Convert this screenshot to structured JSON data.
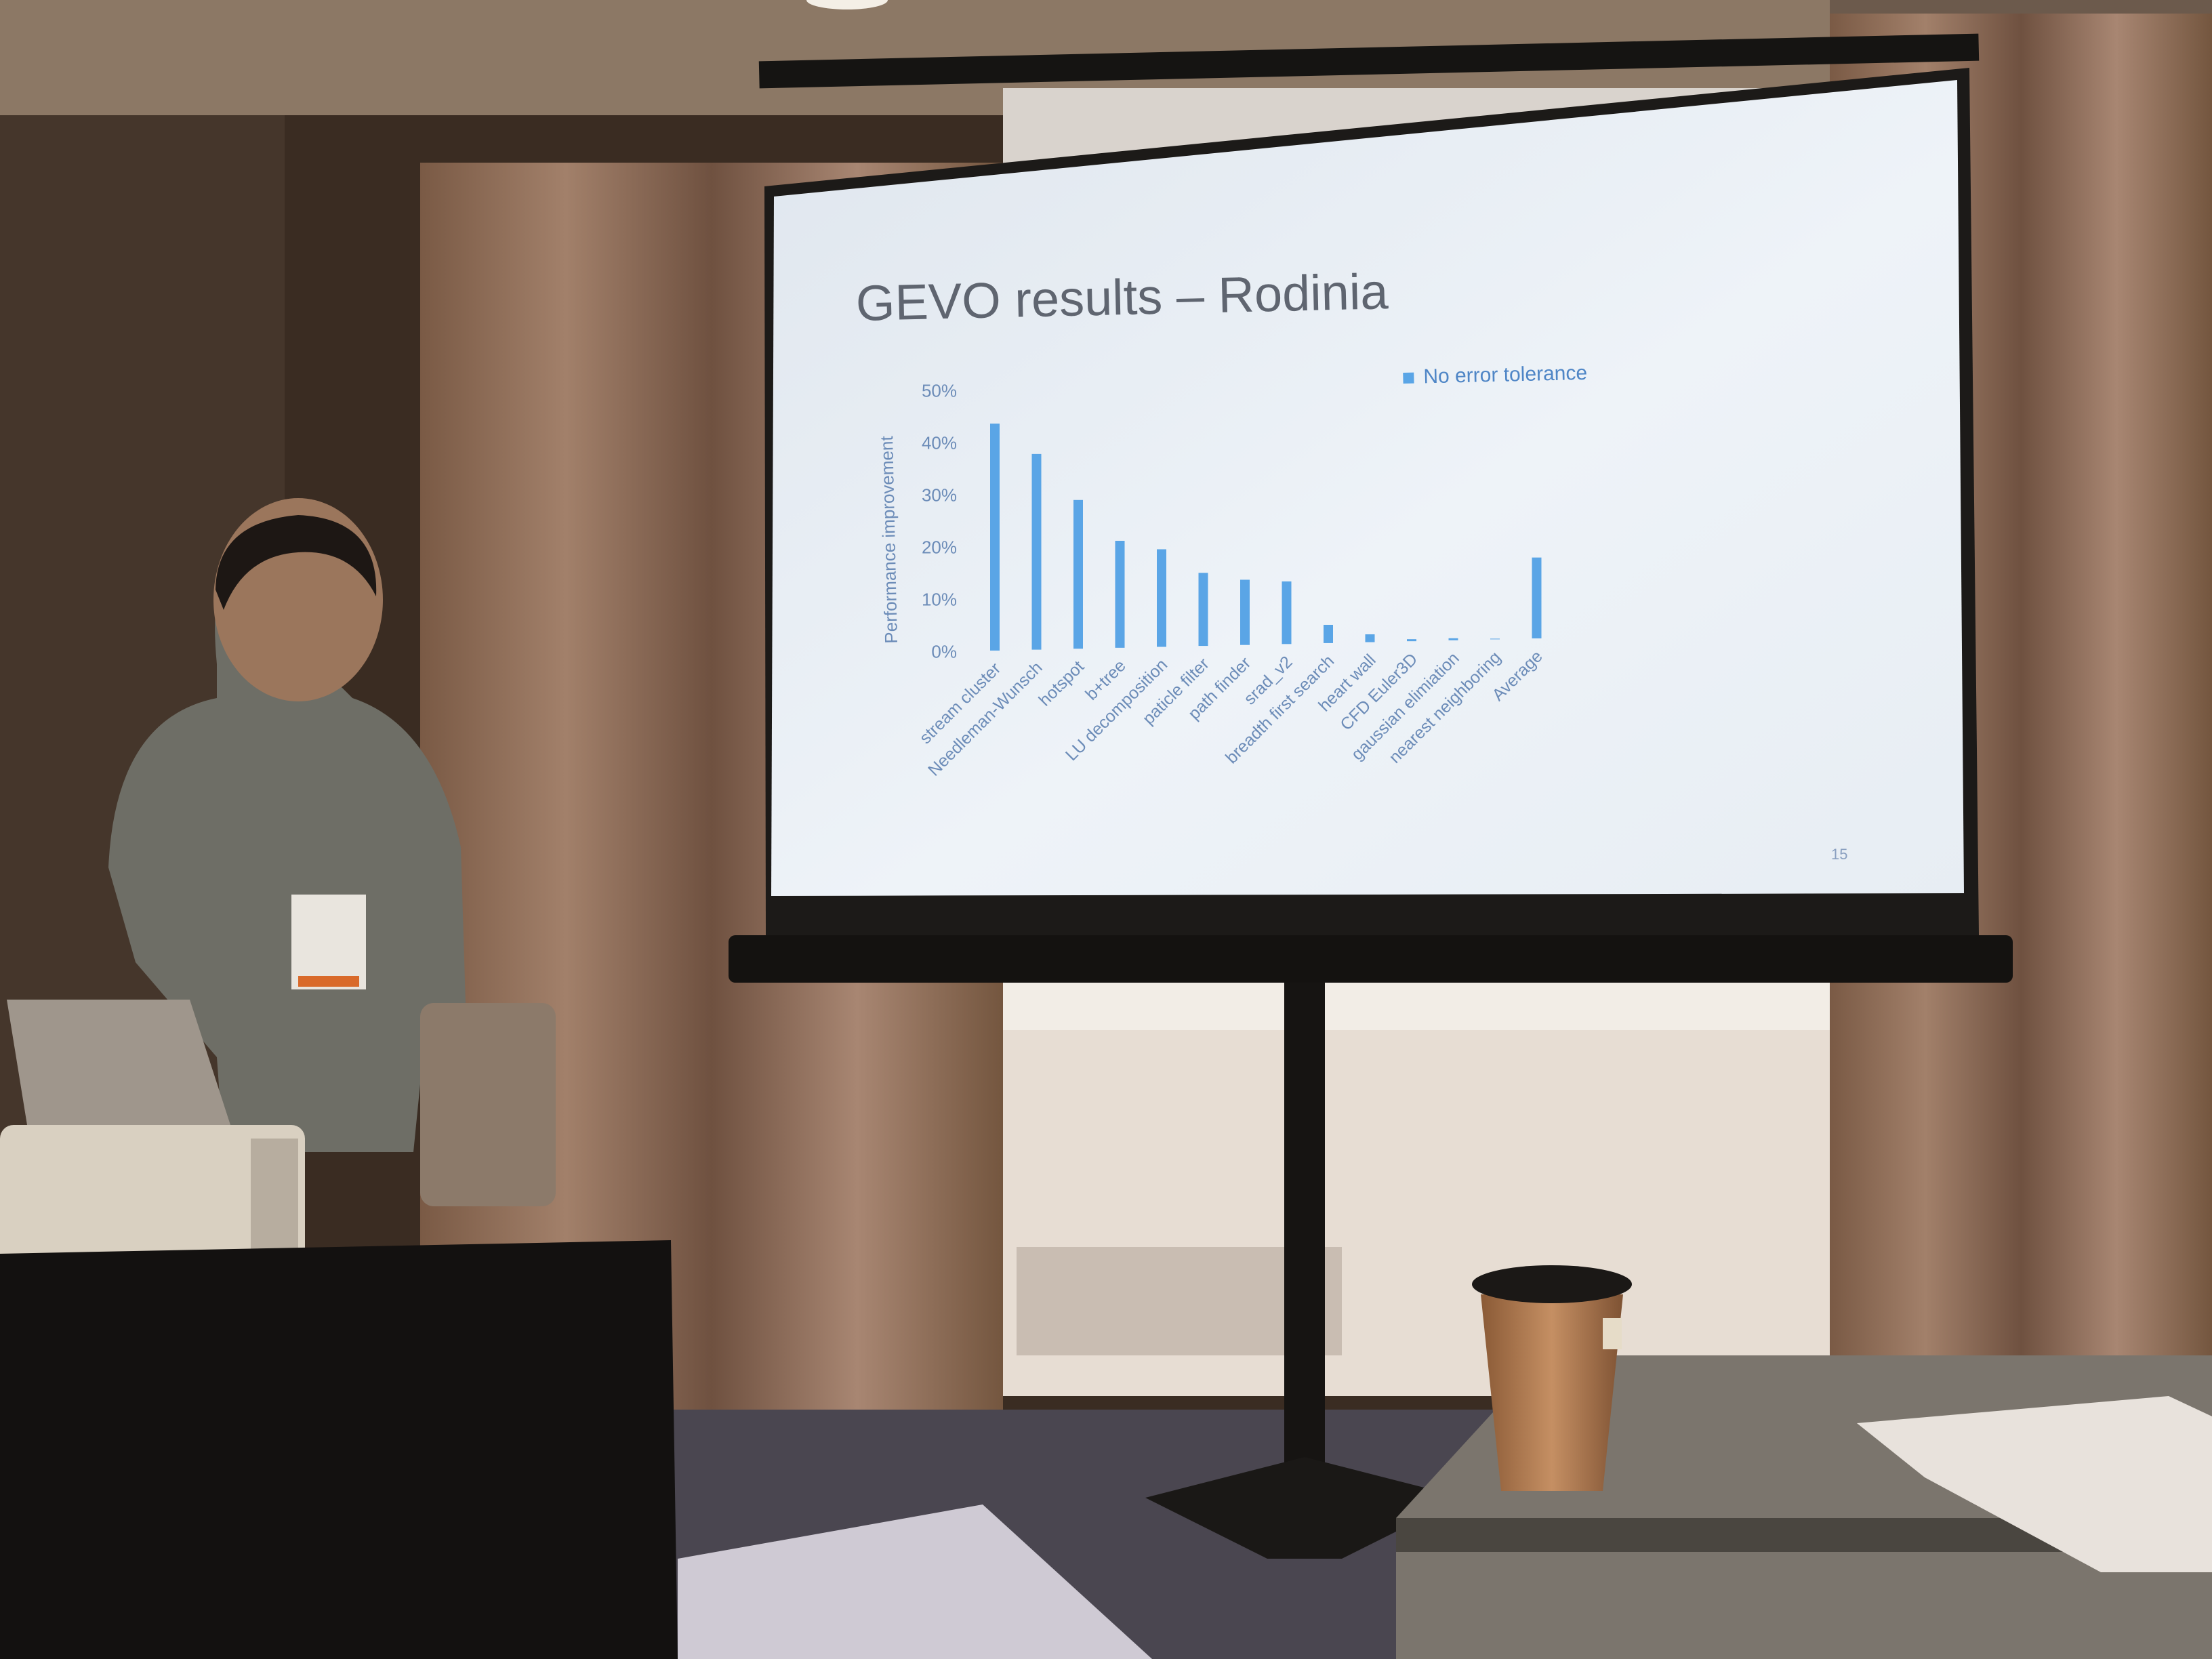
{
  "slide": {
    "title": "GEVO results – Rodinia",
    "page_number": "15"
  },
  "chart_data": {
    "type": "bar",
    "title": "",
    "xlabel": "",
    "ylabel": "Performance improvement",
    "ylim": [
      0,
      50
    ],
    "yticks": [
      "0%",
      "10%",
      "20%",
      "30%",
      "40%",
      "50%"
    ],
    "legend_position": "top-right",
    "categories": [
      "stream cluster",
      "Needleman-Wunsch",
      "hotspot",
      "b+tree",
      "LU decomposition",
      "paticle filter",
      "path finder",
      "srad_v2",
      "breadth first search",
      "heart wall",
      "CFD Euler3D",
      "gaussian elimiation",
      "nearest neighboring",
      "Average"
    ],
    "series": [
      {
        "name": "No error tolerance",
        "values": [
          43.5,
          37.5,
          28.5,
          20.5,
          18.7,
          14,
          12.5,
          12,
          3.5,
          1.5,
          0.3,
          0.3,
          0,
          15.5
        ]
      }
    ],
    "colors": {
      "bar": "#5aa5e6"
    }
  }
}
